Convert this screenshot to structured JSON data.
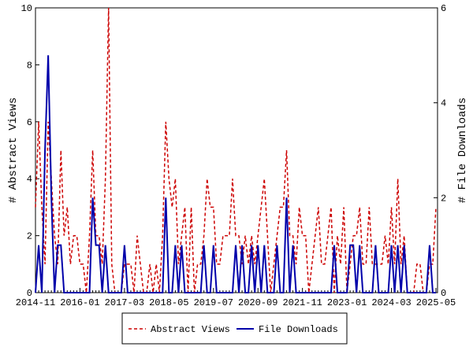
{
  "chart_data": {
    "type": "line",
    "y_label": "# Abstract Views",
    "y2_label": "# File Downloads",
    "categories": [
      "2014-11",
      null,
      null,
      null,
      null,
      null,
      null,
      null,
      null,
      null,
      null,
      null,
      null,
      null,
      "2016-01",
      null,
      null,
      null,
      null,
      null,
      null,
      null,
      null,
      null,
      null,
      null,
      null,
      null,
      "2017-03",
      null,
      null,
      null,
      null,
      null,
      null,
      null,
      null,
      null,
      null,
      null,
      null,
      null,
      "2018-05",
      null,
      null,
      null,
      null,
      null,
      null,
      null,
      null,
      null,
      null,
      null,
      null,
      null,
      "2019-07",
      null,
      null,
      null,
      null,
      null,
      null,
      null,
      null,
      null,
      null,
      null,
      null,
      null,
      "2020-09",
      null,
      null,
      null,
      null,
      null,
      null,
      null,
      null,
      null,
      null,
      null,
      null,
      null,
      "2021-11",
      null,
      null,
      null,
      null,
      null,
      null,
      null,
      null,
      null,
      null,
      null,
      null,
      null,
      "2023-01",
      null,
      null,
      null,
      null,
      null,
      null,
      null,
      null,
      null,
      null,
      null,
      null,
      null,
      "2024-03",
      null,
      null,
      null,
      null,
      null,
      null,
      null,
      null,
      null,
      null,
      null,
      null,
      null,
      "2025-05"
    ],
    "series": [
      {
        "name": "Abstract Views",
        "color": "#cc0000",
        "dash": true,
        "axis": "y",
        "values": [
          3,
          6,
          3,
          1,
          6,
          4,
          2,
          1,
          5,
          2,
          3,
          1,
          2,
          2,
          1,
          1,
          0,
          2,
          5,
          2,
          2,
          1,
          4,
          10,
          1,
          0,
          0,
          0,
          1,
          1,
          1,
          0,
          2,
          1,
          0,
          0,
          1,
          0,
          1,
          0,
          2,
          6,
          4,
          3,
          4,
          1,
          2,
          3,
          0,
          3,
          0,
          1,
          1,
          2,
          4,
          3,
          3,
          1,
          1,
          2,
          2,
          2,
          4,
          2,
          2,
          1,
          2,
          1,
          2,
          1,
          2,
          3,
          4,
          2,
          0,
          1,
          2,
          3,
          3,
          5,
          2,
          2,
          1,
          3,
          2,
          2,
          0,
          1,
          2,
          3,
          1,
          1,
          2,
          3,
          0,
          2,
          1,
          3,
          0,
          1,
          2,
          2,
          3,
          1,
          1,
          3,
          1,
          1,
          1,
          1,
          2,
          1,
          3,
          1,
          4,
          1,
          2,
          0,
          0,
          0,
          1,
          1,
          0,
          0,
          1,
          1,
          3
        ]
      },
      {
        "name": "File Downloads",
        "color": "#0000aa",
        "dash": false,
        "axis": "y2",
        "values": [
          0,
          1,
          0,
          3,
          5,
          2,
          0,
          1,
          1,
          0,
          0,
          0,
          0,
          0,
          0,
          0,
          0,
          0,
          2,
          1,
          1,
          0,
          1,
          0,
          0,
          0,
          0,
          0,
          1,
          0,
          0,
          0,
          0,
          0,
          0,
          0,
          0,
          0,
          0,
          0,
          0,
          2,
          0,
          0,
          1,
          0,
          1,
          0,
          0,
          0,
          0,
          0,
          0,
          1,
          0,
          0,
          1,
          0,
          0,
          0,
          0,
          0,
          0,
          1,
          0,
          1,
          0,
          0,
          1,
          0,
          1,
          0,
          1,
          0,
          0,
          0,
          1,
          0,
          0,
          2,
          0,
          1,
          0,
          0,
          0,
          0,
          0,
          0,
          0,
          0,
          0,
          0,
          0,
          0,
          1,
          0,
          0,
          0,
          0,
          1,
          1,
          0,
          1,
          0,
          0,
          0,
          0,
          1,
          0,
          0,
          0,
          0,
          1,
          0,
          1,
          0,
          1,
          0,
          0,
          0,
          0,
          0,
          0,
          0,
          1,
          0,
          0
        ]
      }
    ],
    "ylim": [
      0,
      10
    ],
    "yticks": [
      0,
      2,
      4,
      6,
      8,
      10
    ],
    "y2lim": [
      0,
      6
    ],
    "y2ticks": [
      0,
      2,
      4,
      6
    ],
    "legend": "bottom"
  }
}
